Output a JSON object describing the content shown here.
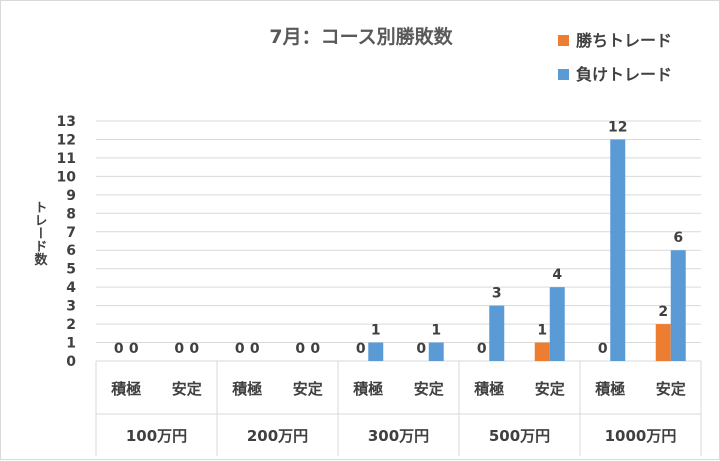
{
  "chart_data": {
    "type": "bar",
    "title": "7月：コース別勝敗数",
    "ylabel": "トレード数",
    "xlabel": "",
    "ylim": [
      0,
      13
    ],
    "yticks": [
      0,
      1,
      2,
      3,
      4,
      5,
      6,
      7,
      8,
      9,
      10,
      11,
      12,
      13
    ],
    "grid": true,
    "legend_position": "top-right",
    "groups": [
      "100万円",
      "200万円",
      "300万円",
      "500万円",
      "1000万円"
    ],
    "categories": [
      "積極",
      "安定",
      "積極",
      "安定",
      "積極",
      "安定",
      "積極",
      "安定",
      "積極",
      "安定"
    ],
    "series": [
      {
        "name": "勝ちトレード",
        "color": "#ed7d31",
        "values": [
          0,
          0,
          0,
          0,
          0,
          0,
          0,
          1,
          0,
          2
        ]
      },
      {
        "name": "負けトレード",
        "color": "#5b9bd5",
        "values": [
          0,
          0,
          0,
          0,
          1,
          1,
          3,
          4,
          12,
          6
        ]
      }
    ]
  }
}
